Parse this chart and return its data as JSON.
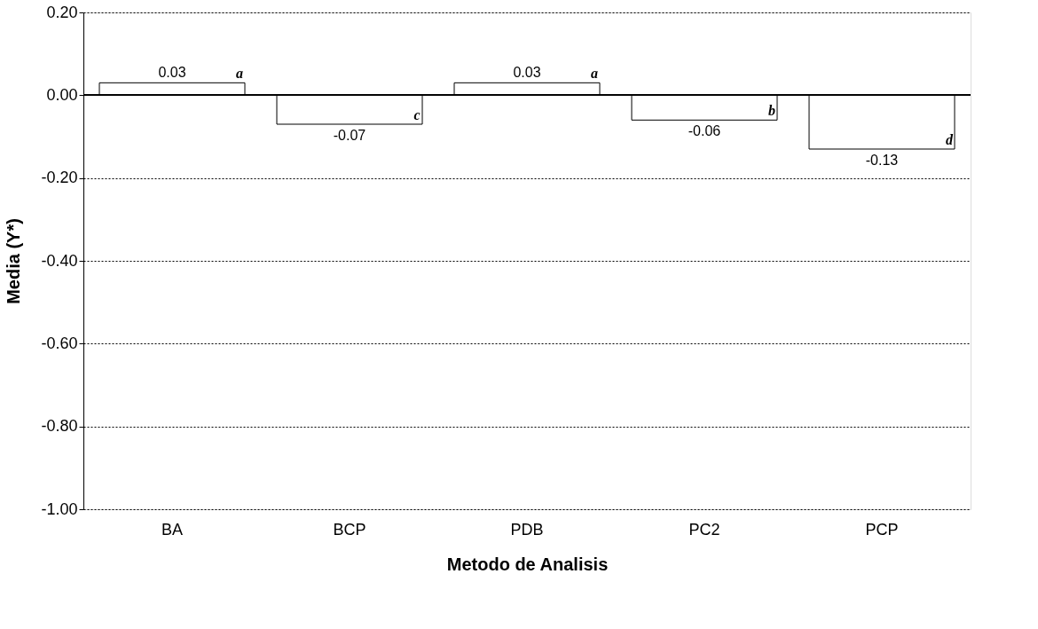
{
  "chart_data": {
    "type": "bar",
    "categories": [
      "BA",
      "BCP",
      "PDB",
      "PC2",
      "PCP"
    ],
    "values": [
      0.03,
      -0.07,
      0.03,
      -0.06,
      -0.13
    ],
    "color": "#ffffff",
    "xlabel": "Metodo de Analisis",
    "ylabel": "Media (Y*)",
    "ylim": [
      -1.0,
      0.2
    ],
    "yticks": [
      {
        "value": 0.2,
        "label": "0.20"
      },
      {
        "value": 0.0,
        "label": "0.00"
      },
      {
        "value": -0.2,
        "label": "-0.20"
      },
      {
        "value": -0.4,
        "label": "-0.40"
      },
      {
        "value": -0.6,
        "label": "-0.60"
      },
      {
        "value": -0.8,
        "label": "-0.80"
      },
      {
        "value": -1.0,
        "label": "-1.00"
      }
    ],
    "grid": "y",
    "data_labels": true,
    "annotations": [
      "a",
      "c",
      "a",
      "b",
      "d"
    ]
  }
}
